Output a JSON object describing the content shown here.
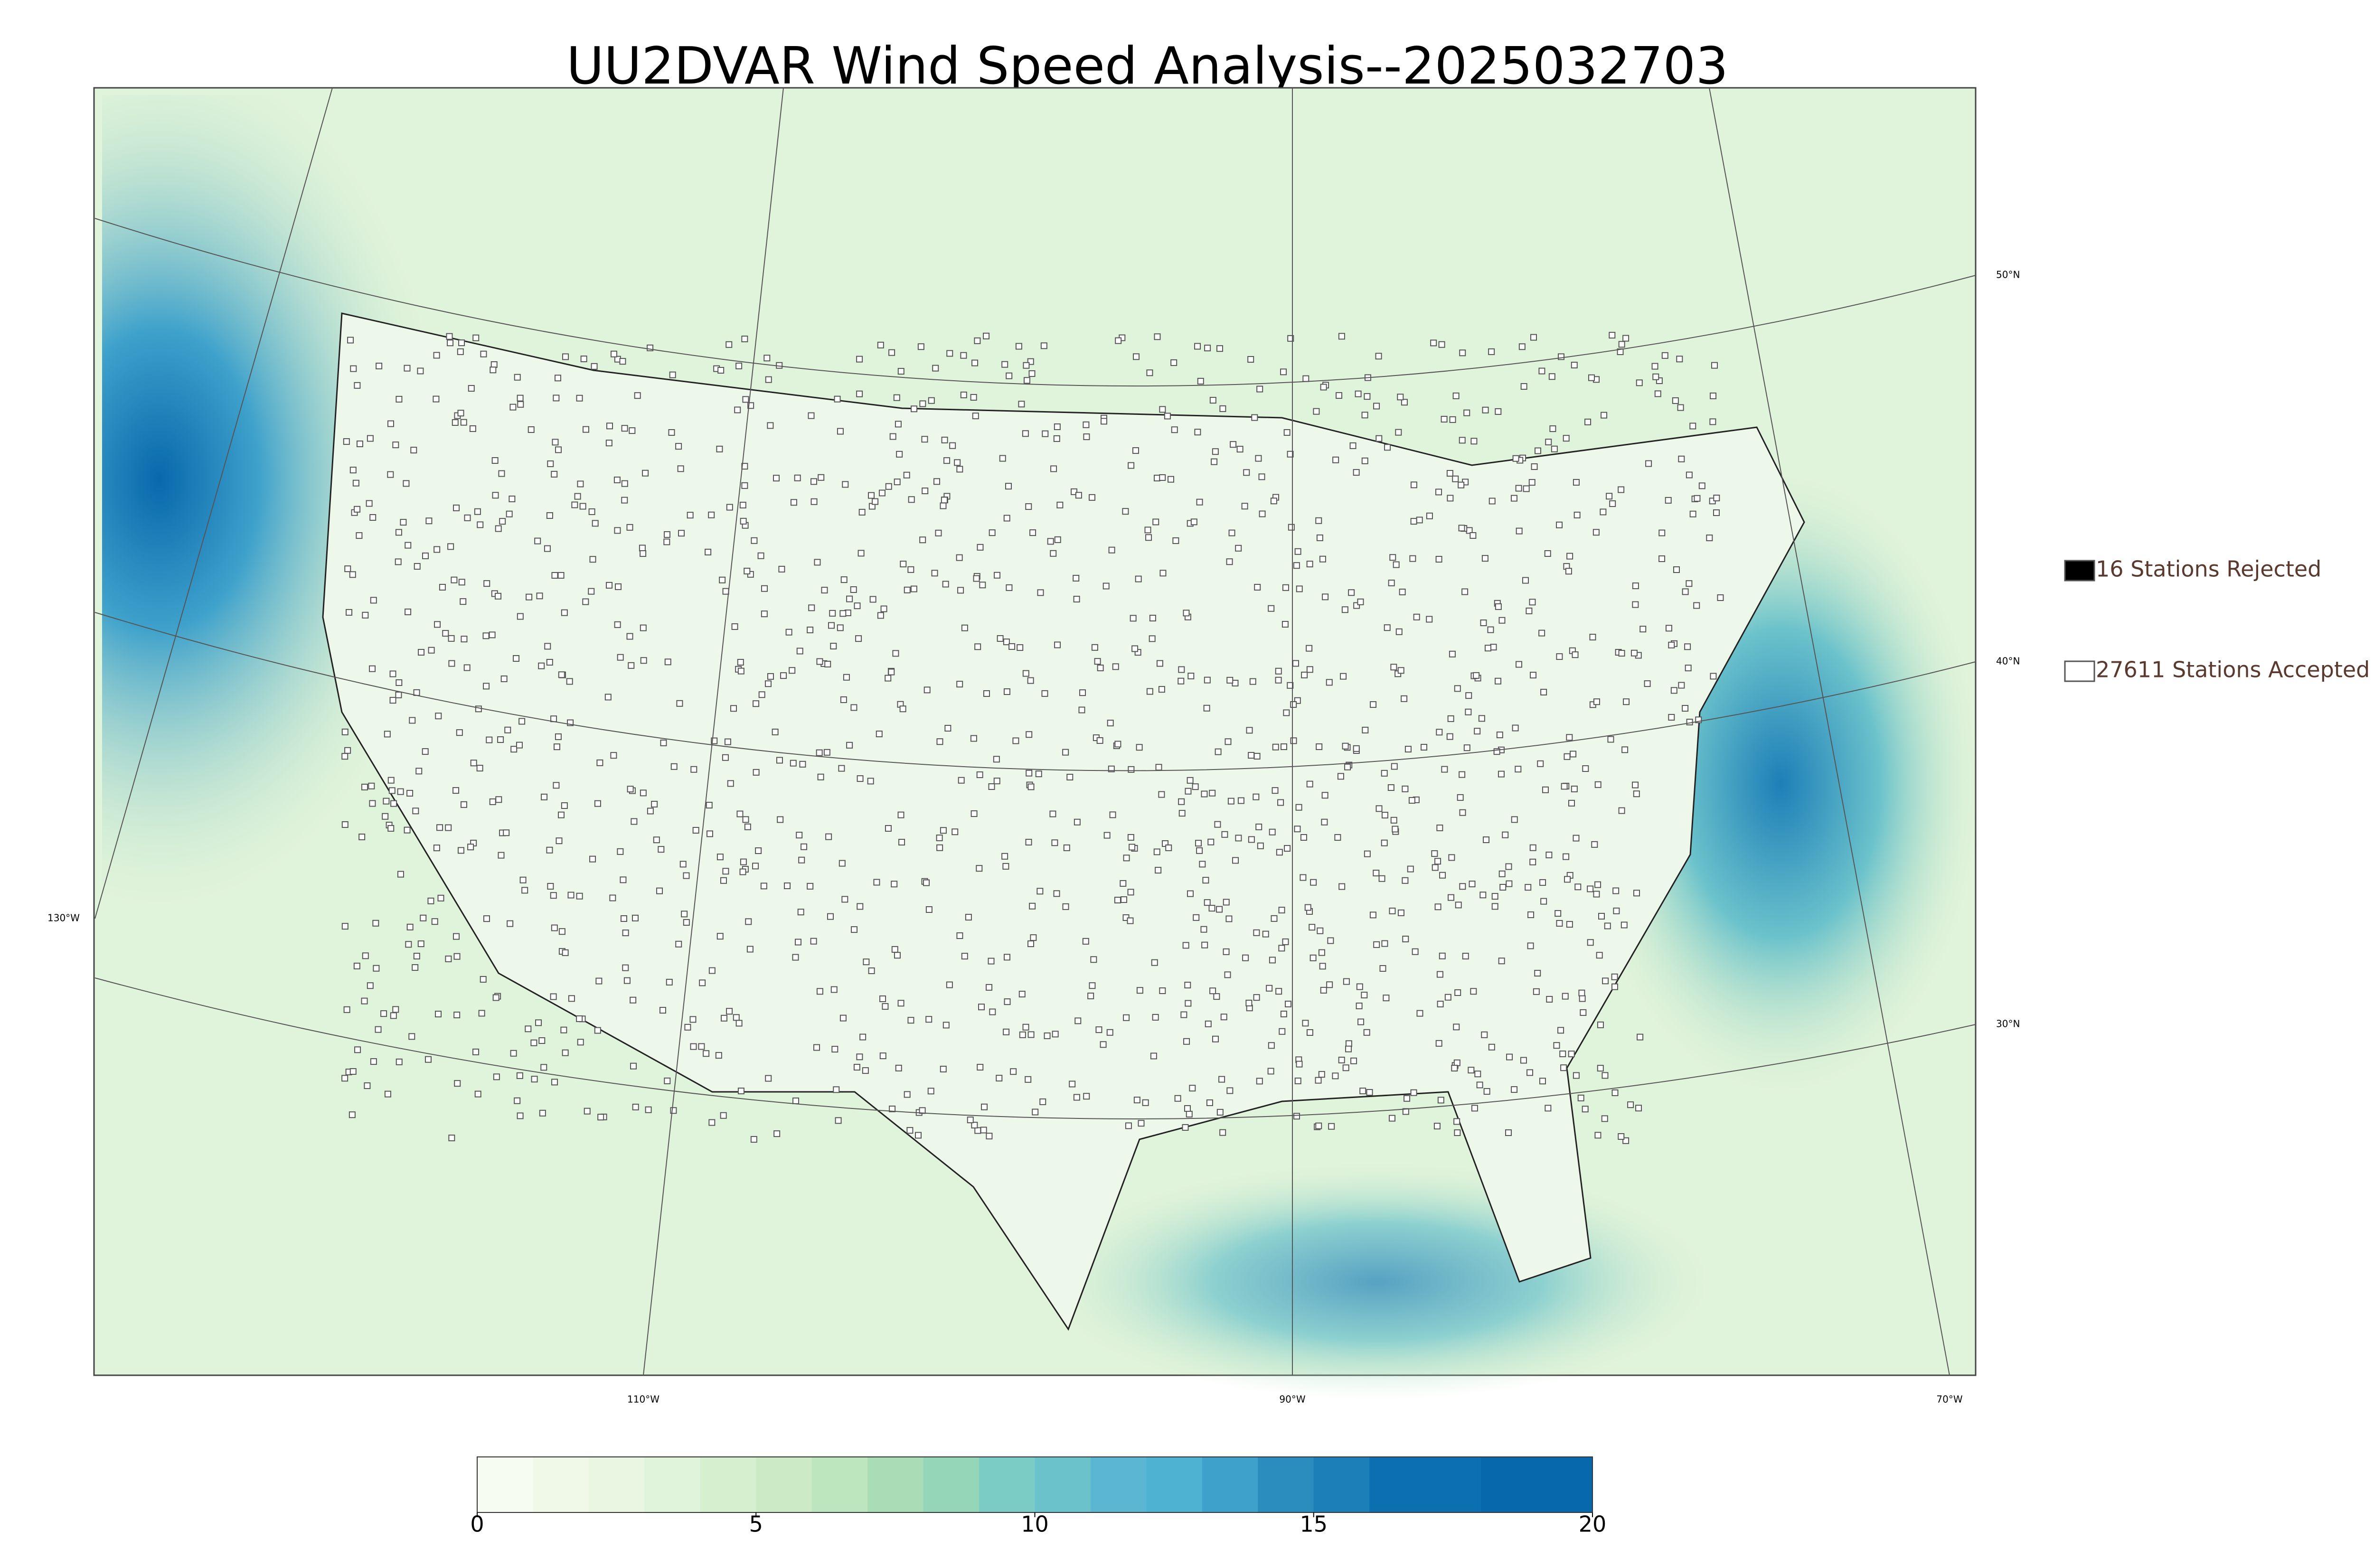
{
  "title": "UU2DVAR Wind Speed Analysis--2025032703",
  "legend": [
    {
      "label": "16 Stations Rejected",
      "color": "#000000"
    },
    {
      "label": "27611 Stations Accepted",
      "color": "#ffffff"
    }
  ],
  "graticule": {
    "lat_labels": [
      "50°N",
      "40°N",
      "30°N"
    ],
    "lon_labels": [
      "130°W",
      "110°W",
      "90°W",
      "70°W"
    ]
  },
  "colorbar": {
    "range": [
      0,
      20
    ],
    "ticks": [
      0,
      5,
      10,
      15,
      20
    ],
    "levels": [
      0,
      1,
      2,
      3,
      4,
      5,
      6,
      7,
      8,
      9,
      10,
      11,
      12,
      13,
      14,
      15,
      16,
      18,
      20
    ],
    "colors": [
      "#f7fcf0",
      "#f0f9e8",
      "#e9f6e2",
      "#e0f3db",
      "#d5efcf",
      "#ccebc5",
      "#bde5be",
      "#a8ddb5",
      "#95d5b8",
      "#7bccc4",
      "#6bc2cb",
      "#5ab6d2",
      "#4eb3d3",
      "#3ea1cb",
      "#2b8cbe",
      "#1d7fb8",
      "#0c6fb0",
      "#0868ac"
    ]
  }
}
